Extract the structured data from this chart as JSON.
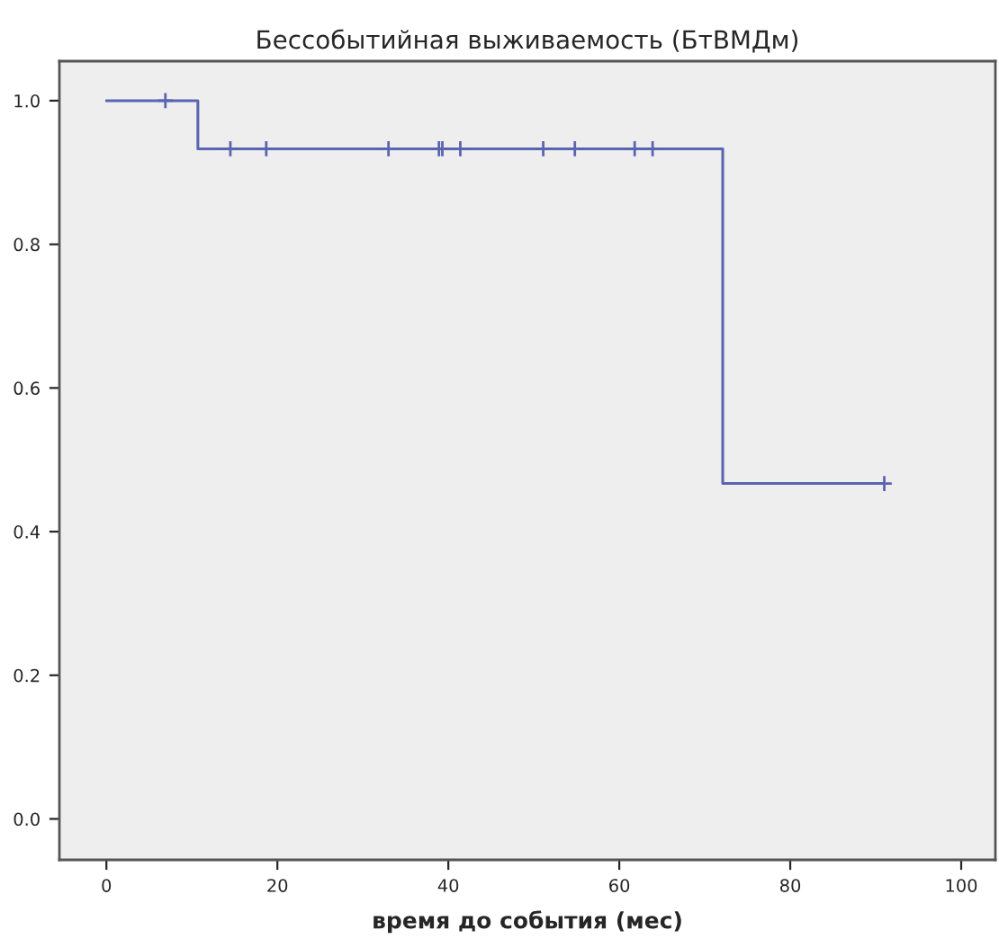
{
  "chart_data": {
    "type": "step",
    "title": "Бессобытийная выживаемость (БтВМДм)",
    "xlabel": "время до события (мес)",
    "series": [
      {
        "color": "#5a64b0",
        "x": [
          0,
          10.7,
          72.1,
          91.0
        ],
        "values": [
          1.0,
          0.933,
          0.467,
          0.467
        ],
        "marker": "none"
      },
      {
        "type": "scatter",
        "color": "#5a64b0",
        "x": [
          6.9,
          14.5,
          18.7,
          33.0,
          38.9,
          39.3,
          41.4,
          51.1,
          54.8,
          61.8,
          63.9,
          91.0
        ],
        "values": [
          1.0,
          0.933,
          0.933,
          0.933,
          0.933,
          0.933,
          0.933,
          0.933,
          0.933,
          0.933,
          0.933,
          0.467
        ],
        "marker": "cross"
      }
    ],
    "xlim": [
      -5.5,
      104
    ],
    "ylim": [
      -0.057,
      1.055
    ],
    "xticks": [
      0,
      20,
      40,
      60,
      80,
      100
    ],
    "yticks": [
      {
        "value": 0.0,
        "label": "0.0"
      },
      {
        "value": 0.2,
        "label": "0.2"
      },
      {
        "value": 0.4,
        "label": "0.4"
      },
      {
        "value": 0.6,
        "label": "0.6"
      },
      {
        "value": 0.8,
        "label": "0.8"
      },
      {
        "value": 1.0,
        "label": "1.0"
      }
    ],
    "grid": false,
    "legend": false
  }
}
